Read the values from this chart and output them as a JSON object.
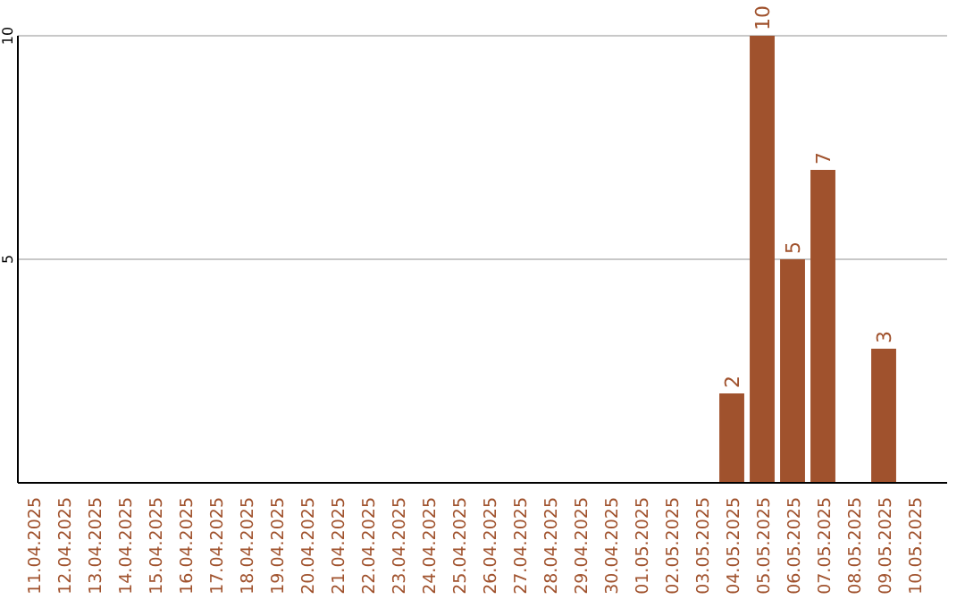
{
  "chart_data": {
    "type": "bar",
    "categories": [
      "11.04.2025",
      "12.04.2025",
      "13.04.2025",
      "14.04.2025",
      "15.04.2025",
      "16.04.2025",
      "17.04.2025",
      "18.04.2025",
      "19.04.2025",
      "20.04.2025",
      "21.04.2025",
      "22.04.2025",
      "23.04.2025",
      "24.04.2025",
      "25.04.2025",
      "26.04.2025",
      "27.04.2025",
      "28.04.2025",
      "29.04.2025",
      "30.04.2025",
      "01.05.2025",
      "02.05.2025",
      "03.05.2025",
      "04.05.2025",
      "05.05.2025",
      "06.05.2025",
      "07.05.2025",
      "08.05.2025",
      "09.05.2025",
      "10.05.2025"
    ],
    "values": [
      null,
      null,
      null,
      null,
      null,
      null,
      null,
      null,
      null,
      null,
      null,
      null,
      null,
      null,
      null,
      null,
      null,
      null,
      null,
      null,
      null,
      null,
      null,
      2,
      10,
      5,
      7,
      null,
      3,
      null
    ],
    "color": "#a0522d",
    "ylim": [
      0,
      10
    ],
    "yticks": [
      5,
      10
    ],
    "grid": "y",
    "data_labels": true
  }
}
